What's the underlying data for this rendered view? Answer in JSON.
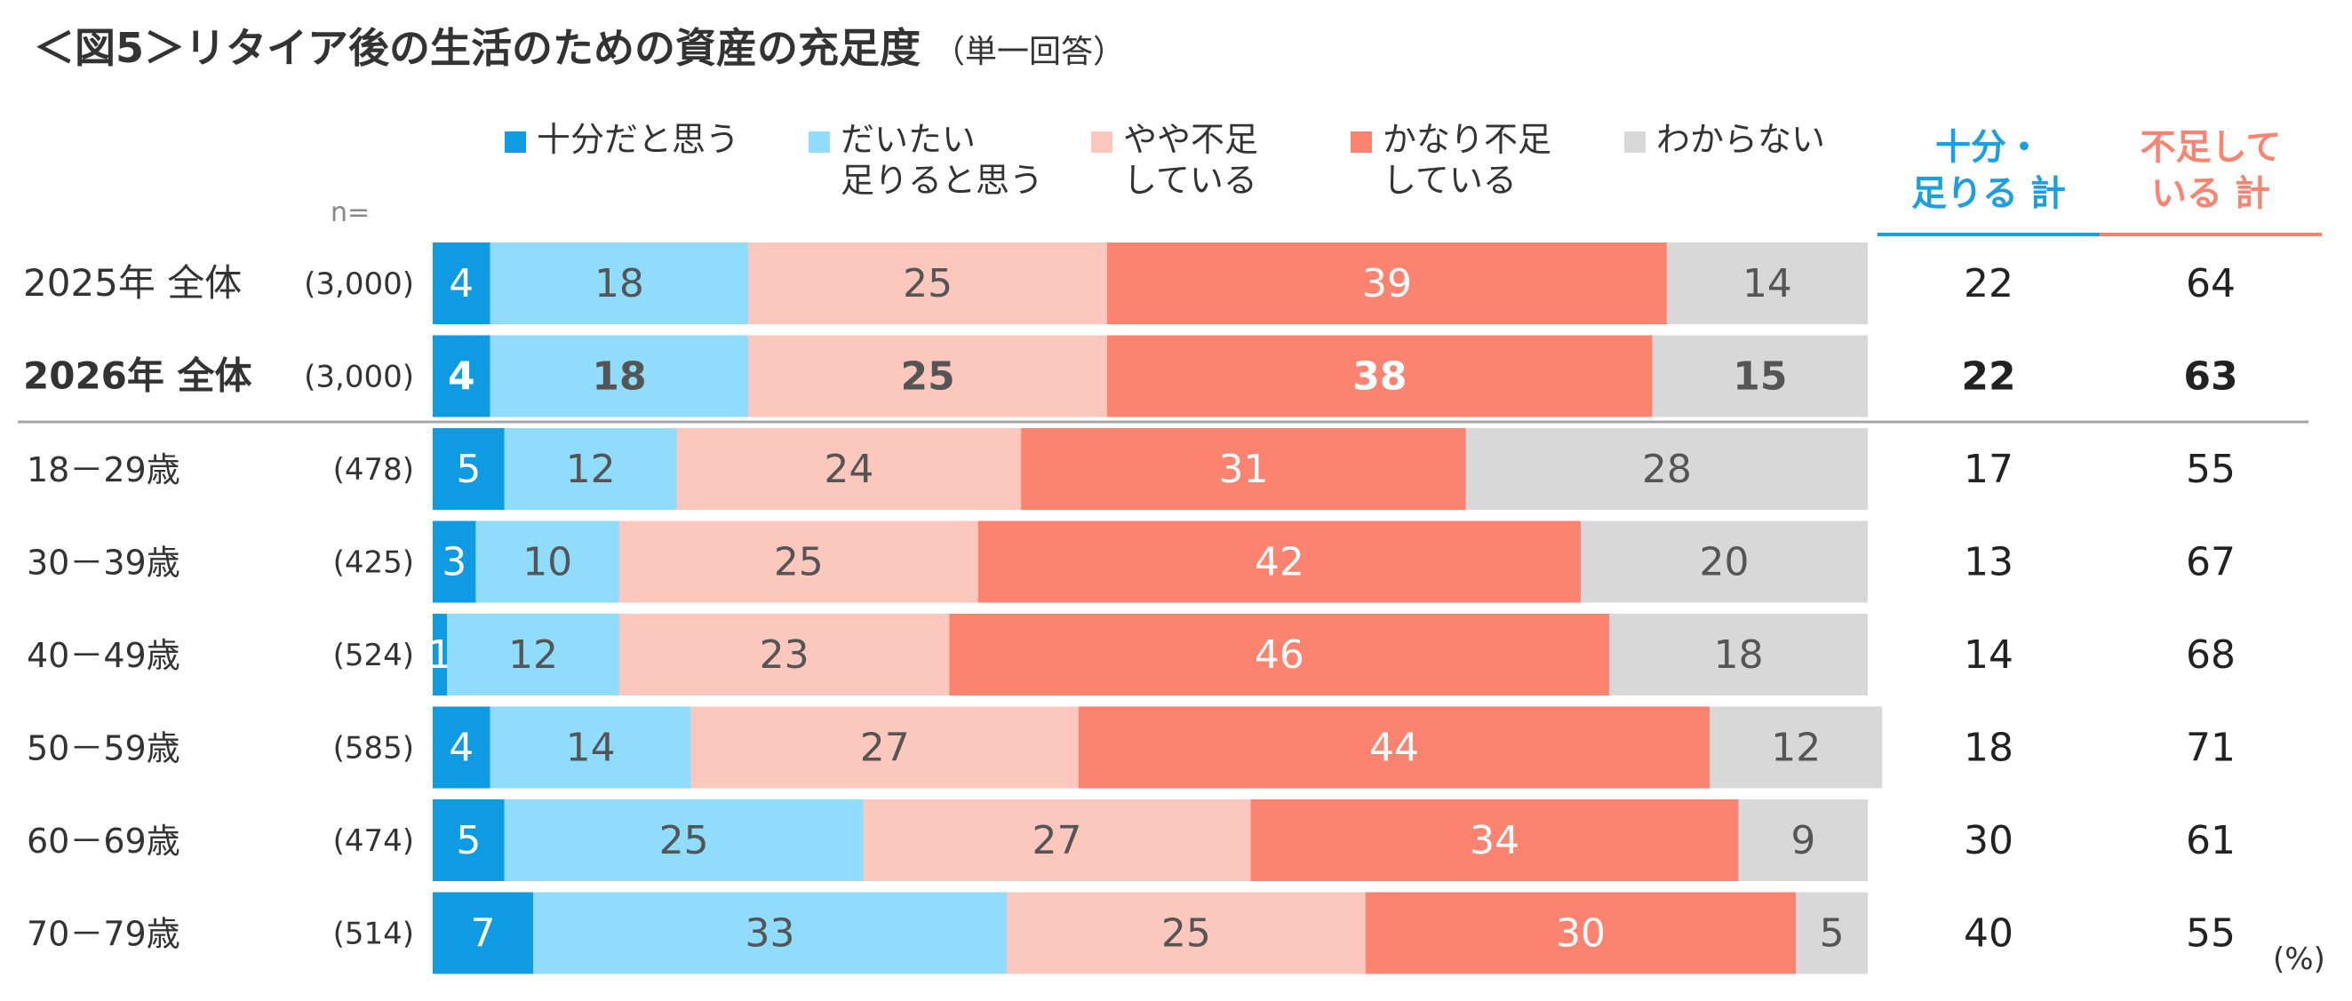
{
  "title": "＜図5＞リタイア後の生活のための資産の充足度",
  "subtitle": "（単一回答）",
  "n_label": "n=",
  "unit": "(%)",
  "legend": [
    {
      "label": "十分だと思う",
      "color": "#0f9be1"
    },
    {
      "label": "だいたい\n足りると思う",
      "color": "#8fdcfc"
    },
    {
      "label": "やや不足\nしている",
      "color": "#fcc8bd"
    },
    {
      "label": "かなり不足\nしている",
      "color": "#fb8370"
    },
    {
      "label": "わからない",
      "color": "#d8d8d8"
    }
  ],
  "totals_header": [
    {
      "label": "十分・\n足りる 計",
      "color": "#1a9fe3"
    },
    {
      "label": "不足して\nいる 計",
      "color": "#fb8370"
    }
  ],
  "chart_data": {
    "type": "bar",
    "stacked": true,
    "orientation": "horizontal",
    "categories": [
      "2025年 全体",
      "2026年 全体",
      "18－29歳",
      "30－39歳",
      "40－49歳",
      "50－59歳",
      "60－69歳",
      "70－79歳"
    ],
    "n": [
      "(3,000)",
      "(3,000)",
      "(478)",
      "(425)",
      "(524)",
      "(585)",
      "(474)",
      "(514)"
    ],
    "bold_rows": [
      1
    ],
    "series": [
      {
        "name": "十分だと思う",
        "values": [
          4,
          4,
          5,
          3,
          1,
          4,
          5,
          7
        ]
      },
      {
        "name": "だいたい足りると思う",
        "values": [
          18,
          18,
          12,
          10,
          12,
          14,
          25,
          33
        ]
      },
      {
        "name": "やや不足している",
        "values": [
          25,
          25,
          24,
          25,
          23,
          27,
          27,
          25
        ]
      },
      {
        "name": "かなり不足している",
        "values": [
          39,
          38,
          31,
          42,
          46,
          44,
          34,
          30
        ]
      },
      {
        "name": "わからない",
        "values": [
          14,
          15,
          28,
          20,
          18,
          12,
          9,
          5
        ]
      }
    ],
    "totals": {
      "十分・足りる 計": [
        22,
        22,
        17,
        13,
        14,
        18,
        30,
        40
      ],
      "不足している 計": [
        64,
        63,
        55,
        67,
        68,
        71,
        61,
        55
      ]
    },
    "xlim": [
      0,
      100
    ]
  }
}
